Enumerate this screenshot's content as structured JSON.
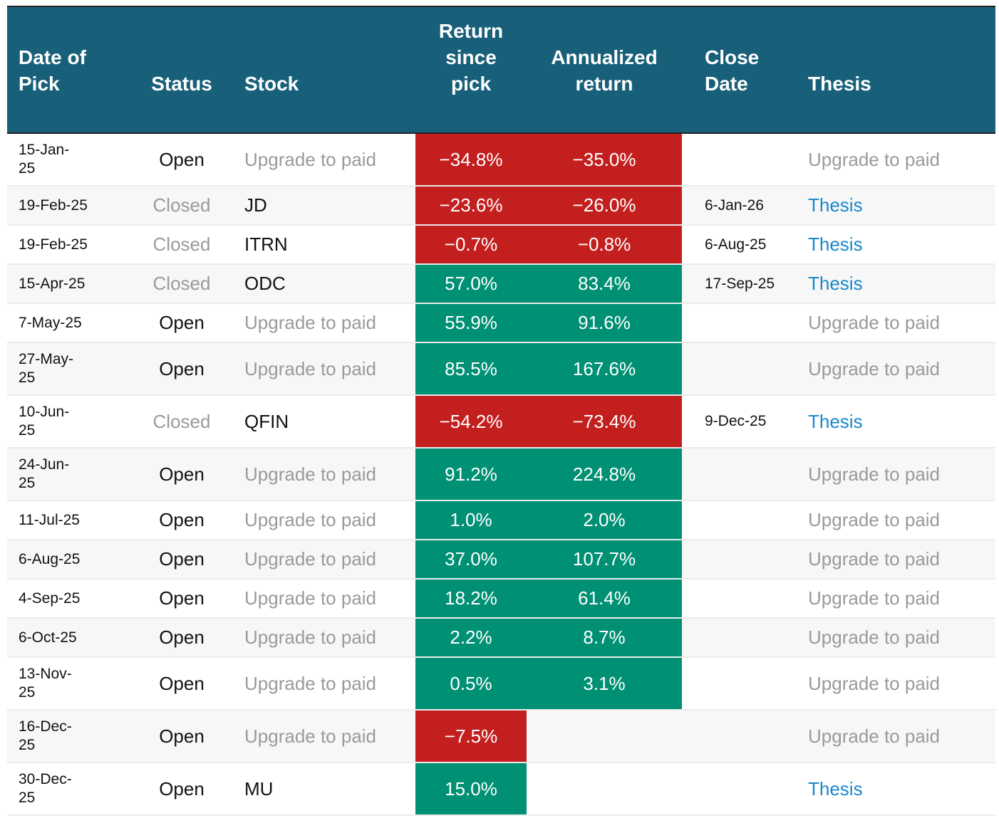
{
  "colors": {
    "header": "#18607a",
    "negative": "#c41f1f",
    "positive": "#009074",
    "link": "#1a87cc",
    "muted": "#9a9a9a"
  },
  "headers": {
    "date": "Date of Pick",
    "status": "Status",
    "stock": "Stock",
    "return": "Return since pick",
    "annualized": "Annualized return",
    "close": "Close Date",
    "thesis": "Thesis"
  },
  "rows": [
    {
      "date": "15-Jan-25",
      "status": "Open",
      "stock": "Upgrade to paid",
      "return": "−34.8%",
      "annualized": "−35.0%",
      "close": "",
      "thesis": "Upgrade to paid"
    },
    {
      "date": "19-Feb-25",
      "status": "Closed",
      "stock": "JD",
      "return": "−23.6%",
      "annualized": "−26.0%",
      "close": "6-Jan-26",
      "thesis": "Thesis"
    },
    {
      "date": "19-Feb-25",
      "status": "Closed",
      "stock": "ITRN",
      "return": "−0.7%",
      "annualized": "−0.8%",
      "close": "6-Aug-25",
      "thesis": "Thesis"
    },
    {
      "date": "15-Apr-25",
      "status": "Closed",
      "stock": "ODC",
      "return": "57.0%",
      "annualized": "83.4%",
      "close": "17-Sep-25",
      "thesis": "Thesis"
    },
    {
      "date": "7-May-25",
      "status": "Open",
      "stock": "Upgrade to paid",
      "return": "55.9%",
      "annualized": "91.6%",
      "close": "",
      "thesis": "Upgrade to paid"
    },
    {
      "date": "27-May-25",
      "status": "Open",
      "stock": "Upgrade to paid",
      "return": "85.5%",
      "annualized": "167.6%",
      "close": "",
      "thesis": "Upgrade to paid"
    },
    {
      "date": "10-Jun-25",
      "status": "Closed",
      "stock": "QFIN",
      "return": "−54.2%",
      "annualized": "−73.4%",
      "close": "9-Dec-25",
      "thesis": "Thesis"
    },
    {
      "date": "24-Jun-25",
      "status": "Open",
      "stock": "Upgrade to paid",
      "return": "91.2%",
      "annualized": "224.8%",
      "close": "",
      "thesis": "Upgrade to paid"
    },
    {
      "date": "11-Jul-25",
      "status": "Open",
      "stock": "Upgrade to paid",
      "return": "1.0%",
      "annualized": "2.0%",
      "close": "",
      "thesis": "Upgrade to paid"
    },
    {
      "date": "6-Aug-25",
      "status": "Open",
      "stock": "Upgrade to paid",
      "return": "37.0%",
      "annualized": "107.7%",
      "close": "",
      "thesis": "Upgrade to paid"
    },
    {
      "date": "4-Sep-25",
      "status": "Open",
      "stock": "Upgrade to paid",
      "return": "18.2%",
      "annualized": "61.4%",
      "close": "",
      "thesis": "Upgrade to paid"
    },
    {
      "date": "6-Oct-25",
      "status": "Open",
      "stock": "Upgrade to paid",
      "return": "2.2%",
      "annualized": "8.7%",
      "close": "",
      "thesis": "Upgrade to paid"
    },
    {
      "date": "13-Nov-25",
      "status": "Open",
      "stock": "Upgrade to paid",
      "return": "0.5%",
      "annualized": "3.1%",
      "close": "",
      "thesis": "Upgrade to paid"
    },
    {
      "date": "16-Dec-25",
      "status": "Open",
      "stock": "Upgrade to paid",
      "return": "−7.5%",
      "annualized": "",
      "close": "",
      "thesis": "Upgrade to paid"
    },
    {
      "date": "30-Dec-25",
      "status": "Open",
      "stock": "MU",
      "return": "15.0%",
      "annualized": "",
      "close": "",
      "thesis": "Thesis"
    }
  ]
}
